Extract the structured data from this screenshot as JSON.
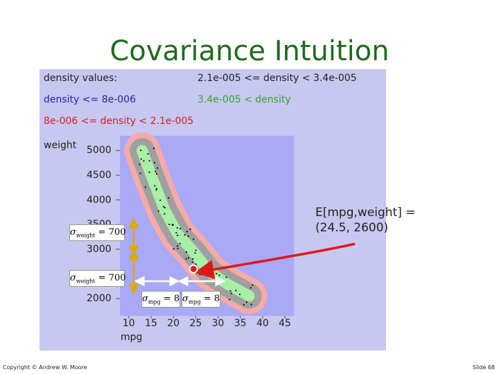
{
  "title": "Covariance Intuition",
  "legend": {
    "header": "density values:",
    "range_mid_high": "2.1e-005 <= density < 3.4e-005",
    "low": "density <= 8e-006",
    "high": "3.4e-005 < density",
    "low_mid": "8e-006 <= density < 2.1e-005"
  },
  "annotation": {
    "line1": "E[mpg,weight] =",
    "line2": "(24.5, 2600)"
  },
  "sigma_labels": {
    "weight": "= 700",
    "weight_sub": "weight",
    "mpg": "= 8",
    "mpg_sub": "mpg",
    "symbol": "σ"
  },
  "footer": {
    "copyright": "Copyright © Andrew W. Moore",
    "slide": "Slide 68"
  },
  "colors": {
    "title": "#1e6b1e",
    "background_region": "#c7c7ef",
    "plot_low": "#a9a9f5",
    "density_low_mid": "#f5a9a9",
    "density_mid_high": "#a0a0a0",
    "density_high": "#a8f0a8",
    "mean_dot": "#e01818",
    "arrow": "#e01818",
    "sigma_arrow": "#e0a800"
  },
  "chart_data": {
    "type": "heatmap",
    "xlabel": "mpg",
    "ylabel": "weight",
    "x_ticks": [
      10,
      15,
      20,
      25,
      30,
      35,
      40,
      45
    ],
    "y_ticks": [
      2000,
      3000,
      3500,
      4000,
      4500,
      5000
    ],
    "xlim": [
      8,
      47
    ],
    "ylim": [
      1650,
      5300
    ],
    "mean": [
      24.5,
      2600
    ],
    "sigma_weight": 700,
    "sigma_mpg": 8,
    "ridge": [
      [
        13,
        5000
      ],
      [
        15,
        4500
      ],
      [
        18,
        3800
      ],
      [
        21,
        3300
      ],
      [
        24.5,
        2950
      ],
      [
        28,
        2550
      ],
      [
        32,
        2300
      ],
      [
        37,
        2050
      ]
    ]
  }
}
